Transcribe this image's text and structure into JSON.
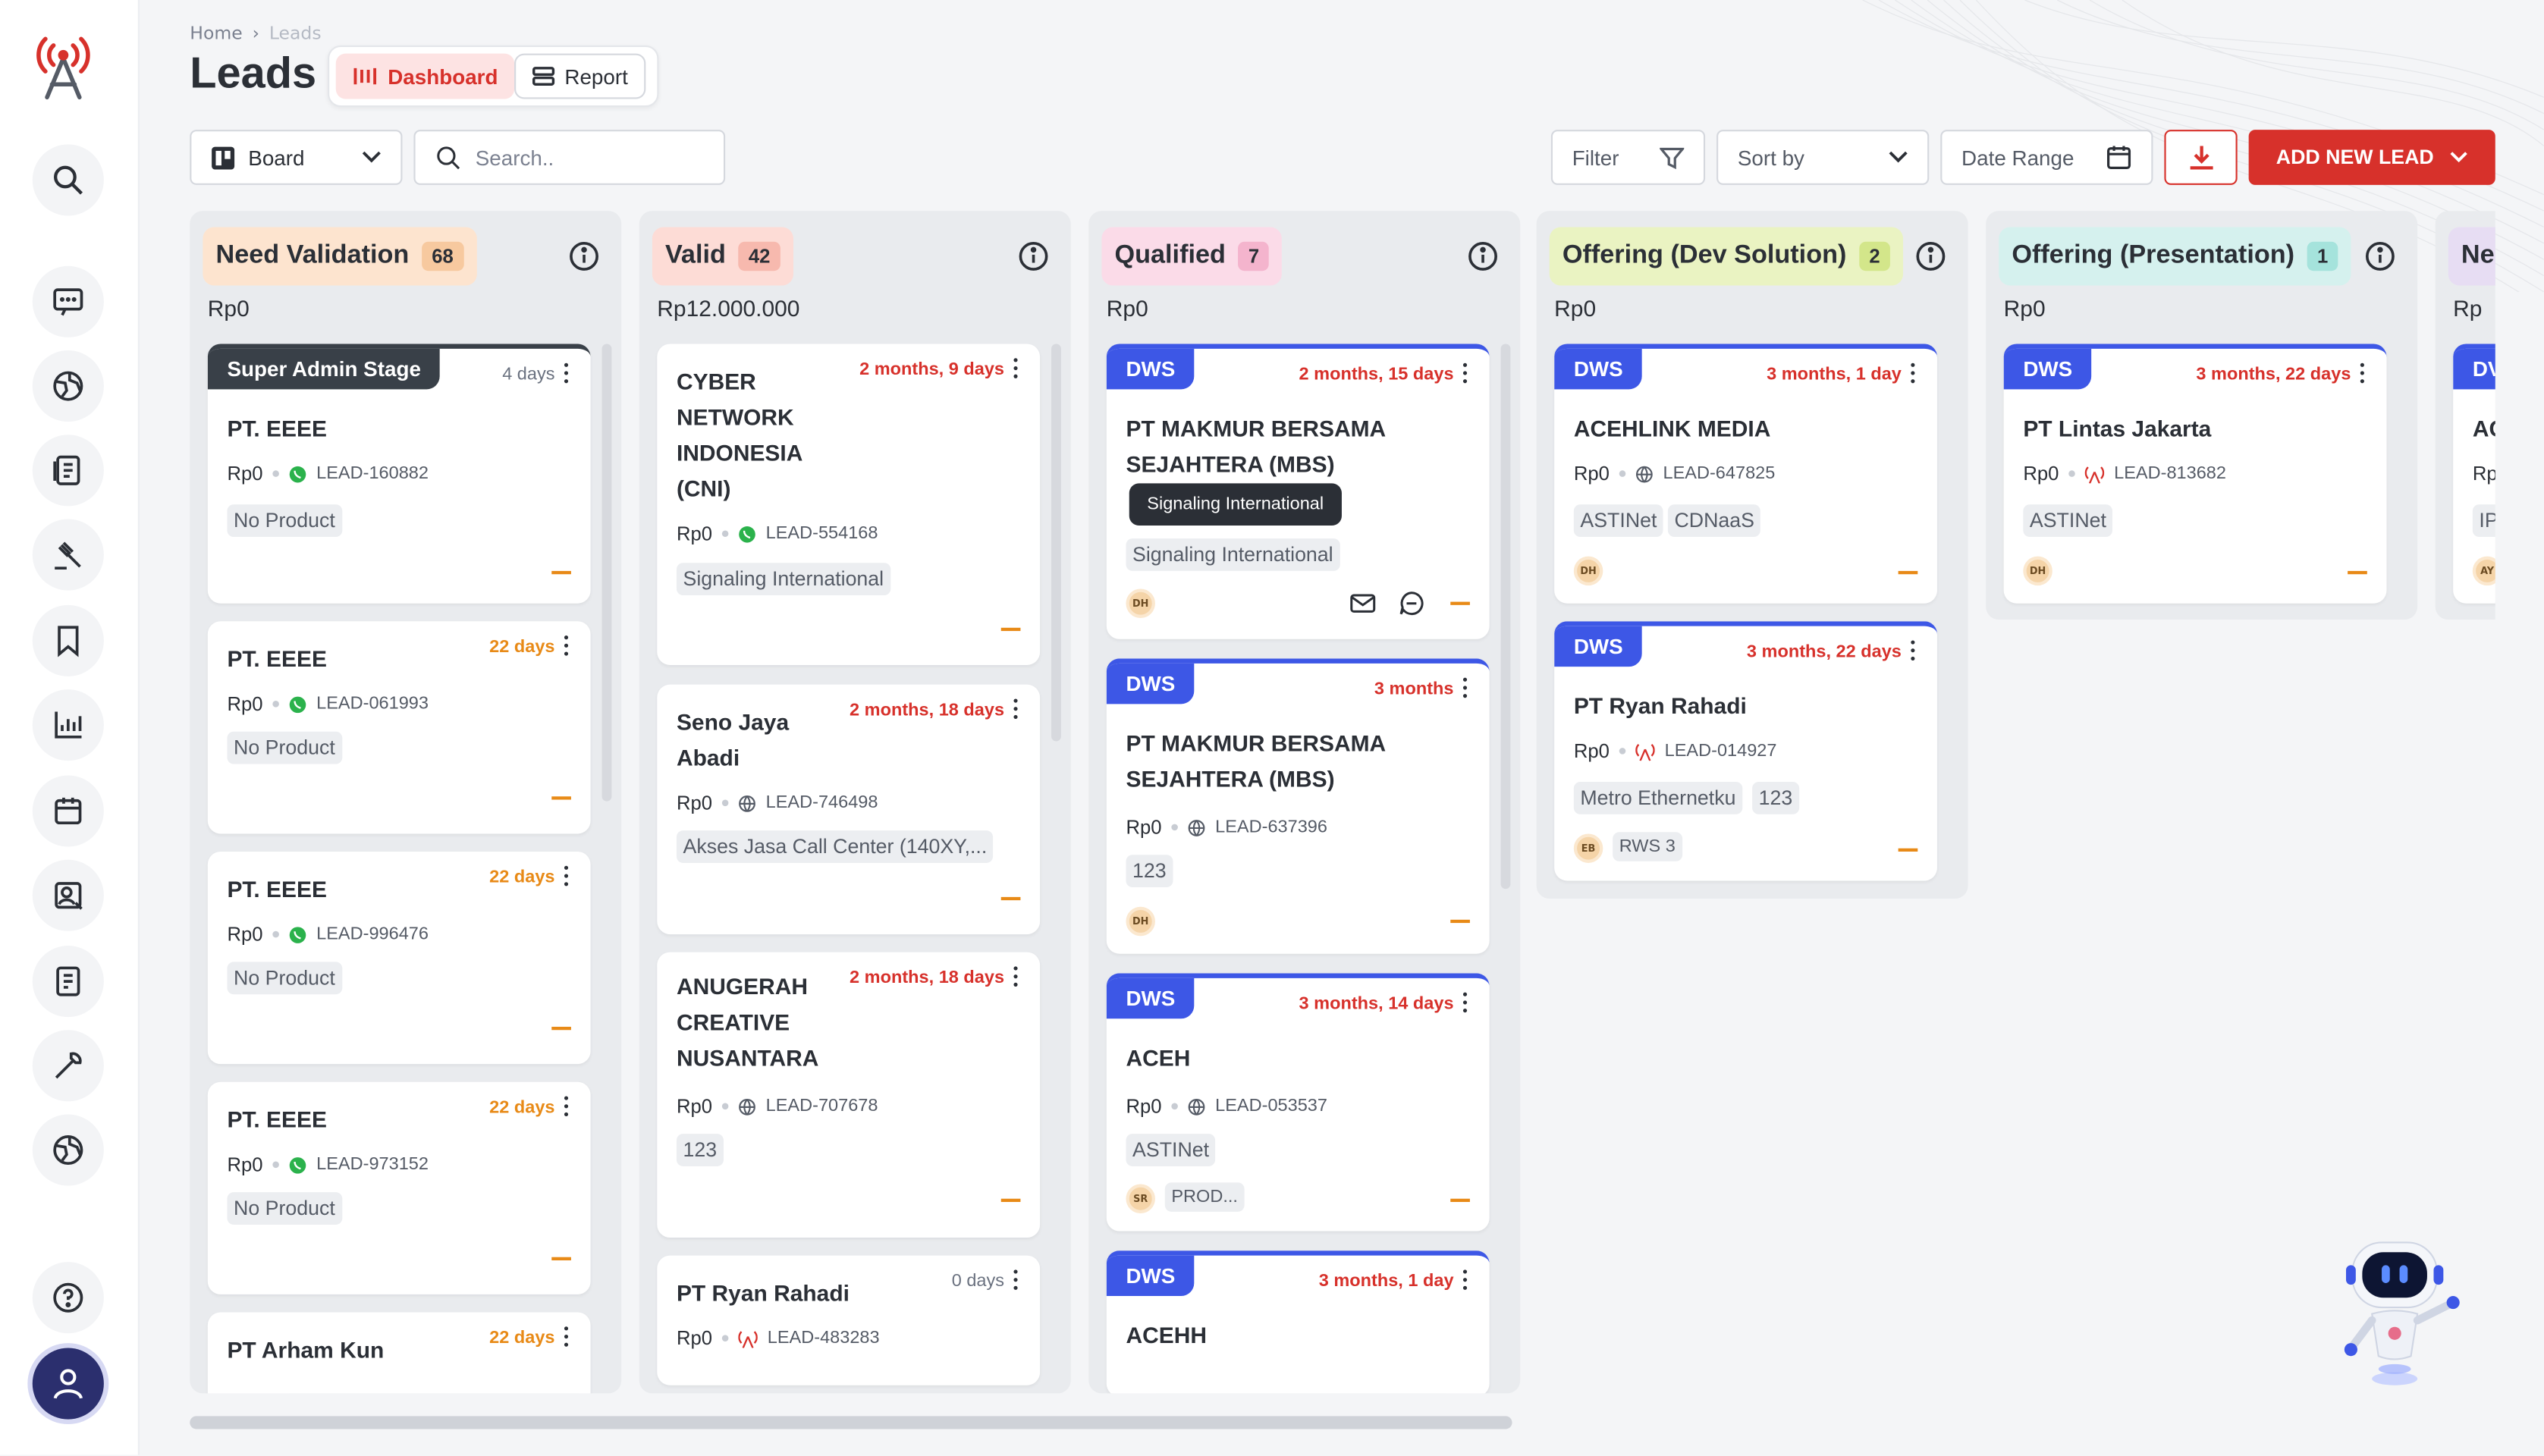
{
  "breadcrumb": {
    "home": "Home",
    "current": "Leads"
  },
  "page": {
    "title": "Leads"
  },
  "view": {
    "dashboard": "Dashboard",
    "report": "Report"
  },
  "toolbar": {
    "board": "Board",
    "search_placeholder": "Search..",
    "filter": "Filter",
    "sort_by": "Sort by",
    "date_range": "Date Range",
    "add_new_lead": "ADD NEW LEAD"
  },
  "colors": {
    "accent": "#d7312b",
    "dws": "#3d57e6",
    "sidebar_bg": "#ffffff"
  },
  "columns": [
    {
      "title": "Need Validation",
      "count": "68",
      "total": "Rp0",
      "head_bg": "#fde4cf",
      "count_bg": "#f7c99f"
    },
    {
      "title": "Valid",
      "count": "42",
      "total": "Rp12.000.000",
      "head_bg": "#fddcd6",
      "count_bg": "#f7b9ae"
    },
    {
      "title": "Qualified",
      "count": "7",
      "total": "Rp0",
      "head_bg": "#fbdbe8",
      "count_bg": "#f4b4cd"
    },
    {
      "title": "Offering (Dev Solution)",
      "count": "2",
      "total": "Rp0",
      "head_bg": "#eaf3c2",
      "count_bg": "#d3e68a"
    },
    {
      "title": "Offering (Presentation)",
      "count": "1",
      "total": "Rp0",
      "head_bg": "#d5f1ee",
      "count_bg": "#a5e3dc"
    },
    {
      "title": "Ne",
      "total": "Rp",
      "head_bg": "#e7ddf3"
    }
  ],
  "cards": {
    "need_validation": [
      {
        "stage": "Super Admin Stage",
        "age": "4 days",
        "name": "PT. EEEE",
        "value": "Rp0",
        "lead_id": "LEAD-160882",
        "product": "No Product"
      },
      {
        "age": "22 days",
        "name": "PT. EEEE",
        "value": "Rp0",
        "lead_id": "LEAD-061993",
        "product": "No Product"
      },
      {
        "age": "22 days",
        "name": "PT. EEEE",
        "value": "Rp0",
        "lead_id": "LEAD-996476",
        "product": "No Product"
      },
      {
        "age": "22 days",
        "name": "PT. EEEE",
        "value": "Rp0",
        "lead_id": "LEAD-973152",
        "product": "No Product"
      },
      {
        "age": "22 days",
        "name": "PT Arham Kun"
      }
    ],
    "valid": [
      {
        "age": "2 months, 9 days",
        "name_lines": [
          "CYBER",
          "NETWORK",
          "INDONESIA",
          "(CNI)"
        ],
        "value": "Rp0",
        "lead_id": "LEAD-554168",
        "product": "Signaling International"
      },
      {
        "age": "2 months, 18 days",
        "name_lines": [
          "Seno Jaya",
          "Abadi"
        ],
        "value": "Rp0",
        "lead_id": "LEAD-746498",
        "product": "Akses Jasa Call Center (140XY,..."
      },
      {
        "age": "2 months, 18 days",
        "name_lines": [
          "ANUGERAH",
          "CREATIVE",
          "NUSANTARA"
        ],
        "value": "Rp0",
        "lead_id": "LEAD-707678",
        "product": "123"
      },
      {
        "age": "0 days",
        "name": "PT Ryan Rahadi",
        "value": "Rp0",
        "lead_id": "LEAD-483283"
      }
    ],
    "qualified": [
      {
        "tag": "DWS",
        "age": "2 months, 15 days",
        "name_lines": [
          "PT MAKMUR BERSAMA",
          "SEJAHTERA (MBS)"
        ],
        "tooltip": "Signaling International",
        "product": "Signaling International",
        "owner": "DH"
      },
      {
        "tag": "DWS",
        "age": "3 months",
        "name_lines": [
          "PT MAKMUR BERSAMA",
          "SEJAHTERA (MBS)"
        ],
        "value": "Rp0",
        "lead_id": "LEAD-637396",
        "product": "123",
        "owner": "DH"
      },
      {
        "tag": "DWS",
        "age": "3 months, 14 days",
        "name": "ACEH",
        "value": "Rp0",
        "lead_id": "LEAD-053537",
        "product": "ASTINet",
        "owner": "SR",
        "extra": "PROD..."
      },
      {
        "tag": "DWS",
        "age": "3 months, 1 day",
        "name": "ACEHH"
      }
    ],
    "offering_dev": [
      {
        "tag": "DWS",
        "age": "3 months, 1 day",
        "name": "ACEHLINK MEDIA",
        "value": "Rp0",
        "lead_id": "LEAD-647825",
        "products": [
          "ASTINet",
          "CDNaaS"
        ],
        "owner": "DH"
      },
      {
        "tag": "DWS",
        "age": "3 months, 22 days",
        "name": "PT Ryan Rahadi",
        "value": "Rp0",
        "lead_id": "LEAD-014927",
        "products": [
          "Metro Ethernetku",
          "123"
        ],
        "owner": "EB",
        "extra": "RWS 3"
      }
    ],
    "offering_pres": [
      {
        "tag": "DWS",
        "age": "3 months, 22 days",
        "name": "PT Lintas Jakarta",
        "value": "Rp0",
        "lead_id": "LEAD-813682",
        "product": "ASTINet",
        "owner": "DH"
      }
    ],
    "next": [
      {
        "tag": "DV",
        "name": "AC",
        "value": "Rp",
        "product": "IP",
        "owner": "AY"
      }
    ]
  }
}
